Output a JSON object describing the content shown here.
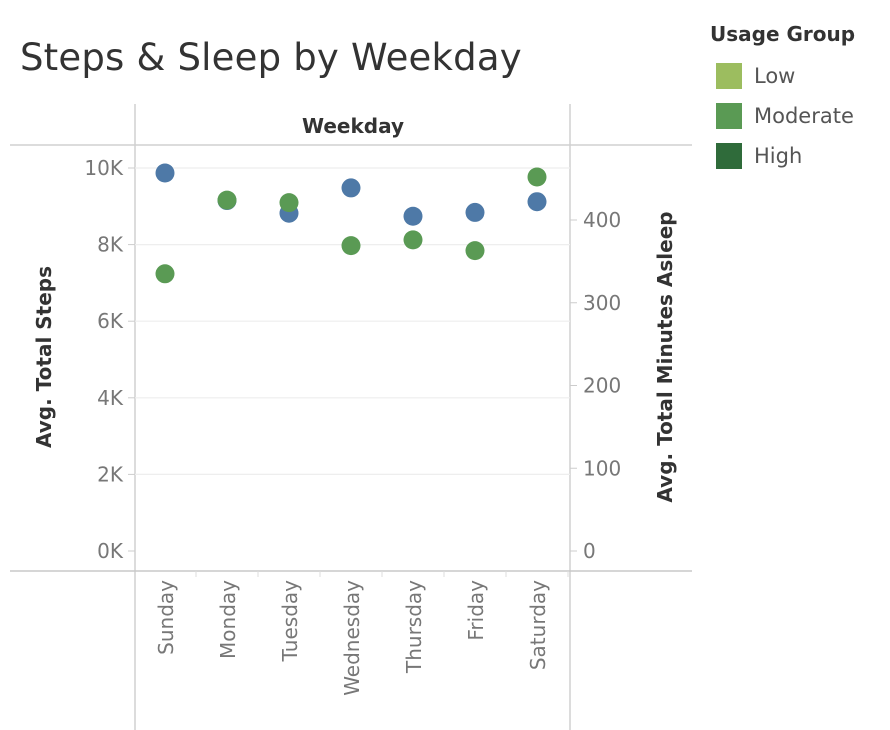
{
  "title": "Steps & Sleep by Weekday",
  "legend": {
    "title": "Usage Group",
    "items": [
      {
        "label": "Low",
        "color": "#9cbd5f"
      },
      {
        "label": "Moderate",
        "color": "#5a9a54"
      },
      {
        "label": "High",
        "color": "#2f6b3a"
      }
    ]
  },
  "chart_data": {
    "type": "scatter",
    "title": "Steps & Sleep by Weekday",
    "column_header": "Weekday",
    "categories": [
      "Sunday",
      "Monday",
      "Tuesday",
      "Wednesday",
      "Thursday",
      "Friday",
      "Saturday"
    ],
    "y_left": {
      "label": "Avg. Total Steps",
      "range": [
        0,
        10500
      ],
      "ticks": [
        0,
        2000,
        4000,
        6000,
        8000,
        10000
      ],
      "tick_labels": [
        "0K",
        "2K",
        "4K",
        "6K",
        "8K",
        "10K"
      ]
    },
    "y_right": {
      "label": "Avg. Total Minutes Asleep",
      "range": [
        0,
        490
      ],
      "ticks": [
        0,
        100,
        200,
        300,
        400
      ],
      "tick_labels": [
        "0",
        "100",
        "200",
        "300",
        "400"
      ]
    },
    "series": [
      {
        "name": "Avg. Total Steps",
        "axis": "left",
        "color": "#4e79a7",
        "values": [
          9870,
          9150,
          8820,
          9480,
          8740,
          8840,
          9120
        ]
      },
      {
        "name": "Avg. Total Minutes Asleep",
        "axis": "right",
        "color": "#5a9a54",
        "values": [
          335,
          424,
          421,
          369,
          376,
          363,
          452
        ]
      }
    ],
    "grid": true,
    "legend_position": "top-right"
  }
}
